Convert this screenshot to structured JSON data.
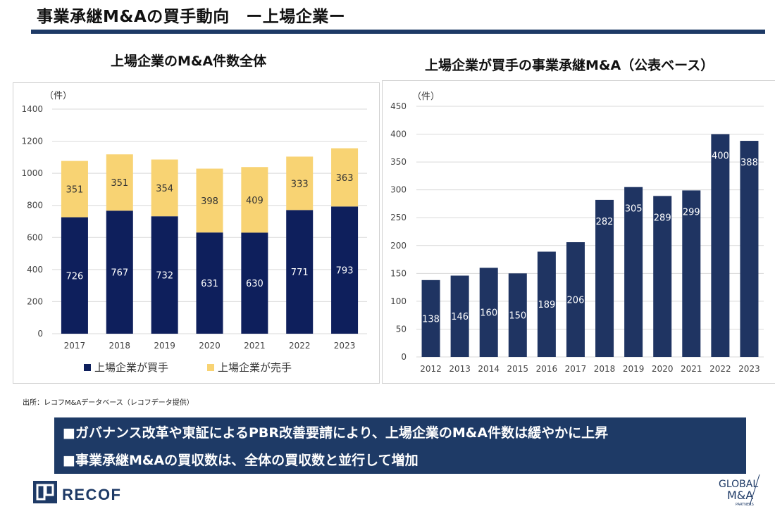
{
  "header": {
    "title": "事業承継M&Aの買手動向　ー上場企業ー"
  },
  "left_chart": {
    "title": "上場企業のM&A件数全体",
    "unit": "（件）"
  },
  "right_chart": {
    "title": "上場企業が買手の事業承継M&A（公表ベース）",
    "unit": "（件）"
  },
  "chart_data": [
    {
      "type": "bar",
      "stacked": true,
      "title": "上場企業のM&A件数全体",
      "categories": [
        "2017",
        "2018",
        "2019",
        "2020",
        "2021",
        "2022",
        "2023"
      ],
      "series": [
        {
          "name": "上場企業が買手",
          "values": [
            726,
            767,
            732,
            631,
            630,
            771,
            793
          ],
          "color": "#0e1f5c"
        },
        {
          "name": "上場企業が売手",
          "values": [
            351,
            351,
            354,
            398,
            409,
            333,
            363
          ],
          "color": "#f8d373"
        }
      ],
      "ylabel": "（件）",
      "ylim": [
        0,
        1400
      ],
      "yticks": [
        0,
        200,
        400,
        600,
        800,
        1000,
        1200,
        1400
      ],
      "grid": true,
      "legend": "bottom"
    },
    {
      "type": "bar",
      "title": "上場企業が買手の事業承継M&A（公表ベース）",
      "categories": [
        "2012",
        "2013",
        "2014",
        "2015",
        "2016",
        "2017",
        "2018",
        "2019",
        "2020",
        "2021",
        "2022",
        "2023"
      ],
      "values": [
        138,
        146,
        160,
        150,
        189,
        206,
        282,
        305,
        289,
        299,
        400,
        388
      ],
      "color": "#1f3462",
      "ylabel": "（件）",
      "ylim": [
        0,
        450
      ],
      "yticks": [
        0,
        50,
        100,
        150,
        200,
        250,
        300,
        350,
        400,
        450
      ],
      "grid": true
    }
  ],
  "source": "出所：レコフM&Aデータベース（レコフデータ提供）",
  "bullets": [
    "■ガバナンス改革や東証によるPBR改善要請により、上場企業のM&A件数は緩やかに上昇",
    "■事業承継M&Aの買収数は、全体の買収数と並行して増加"
  ],
  "logos": {
    "recof": "RECOF",
    "gma_line1": "GLOBAL",
    "gma_line2": "M&A",
    "gma_line3": "PARTNERS"
  },
  "colors": {
    "brand_navy": "#1e3a66"
  }
}
